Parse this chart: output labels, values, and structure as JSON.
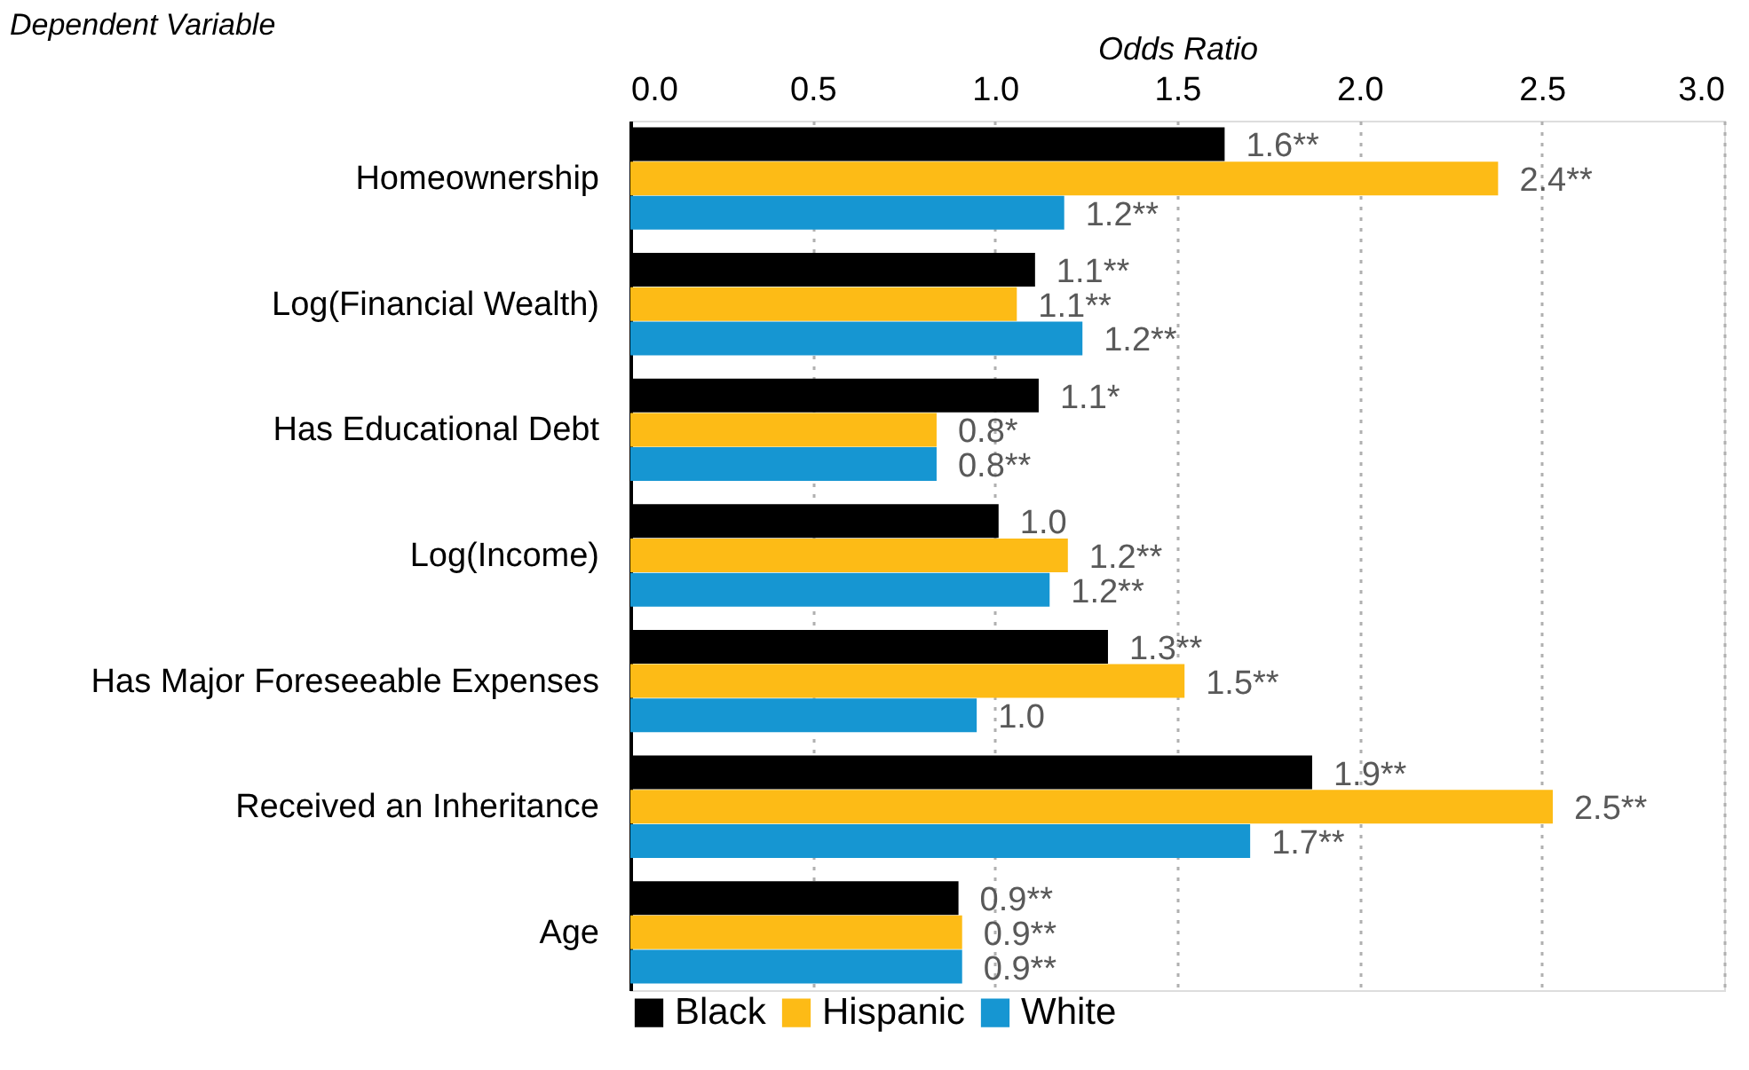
{
  "chart_data": {
    "type": "bar",
    "orientation": "horizontal",
    "xlabel": "Odds Ratio",
    "ylabel": "Dependent Variable",
    "categories": [
      "Homeownership",
      "Log(Financial Wealth)",
      "Has Educational Debt",
      "Log(Income)",
      "Has Major Foreseeable Expenses",
      "Received an Inheritance",
      "Age"
    ],
    "series": [
      {
        "name": "Black",
        "color": "#000000",
        "values": [
          1.63,
          1.11,
          1.12,
          1.01,
          1.31,
          1.87,
          0.9
        ],
        "value_labels": [
          "1.6**",
          "1.1**",
          "1.1*",
          "1.0",
          "1.3**",
          "1.9**",
          "0.9**"
        ]
      },
      {
        "name": "Hispanic",
        "color": "#fdbb16",
        "values": [
          2.38,
          1.06,
          0.84,
          1.2,
          1.52,
          2.53,
          0.91
        ],
        "value_labels": [
          "2.4**",
          "1.1**",
          "0.8*",
          "1.2**",
          "1.5**",
          "2.5**",
          "0.9**"
        ]
      },
      {
        "name": "White",
        "color": "#1696d2",
        "values": [
          1.19,
          1.24,
          0.84,
          1.15,
          0.95,
          1.7,
          0.91
        ],
        "value_labels": [
          "1.2**",
          "1.2**",
          "0.8**",
          "1.2**",
          "1.0",
          "1.7**",
          "0.9**"
        ]
      }
    ],
    "xlim": [
      0,
      3
    ],
    "xticks": [
      {
        "value": 0,
        "label": "0.0"
      },
      0.5,
      {
        "value": 1,
        "label": "1.0"
      },
      1.5,
      {
        "value": 2,
        "label": "2.0"
      },
      2.5,
      {
        "value": 3,
        "label": "3.0"
      }
    ],
    "grid": "x",
    "legend": "bottom"
  }
}
